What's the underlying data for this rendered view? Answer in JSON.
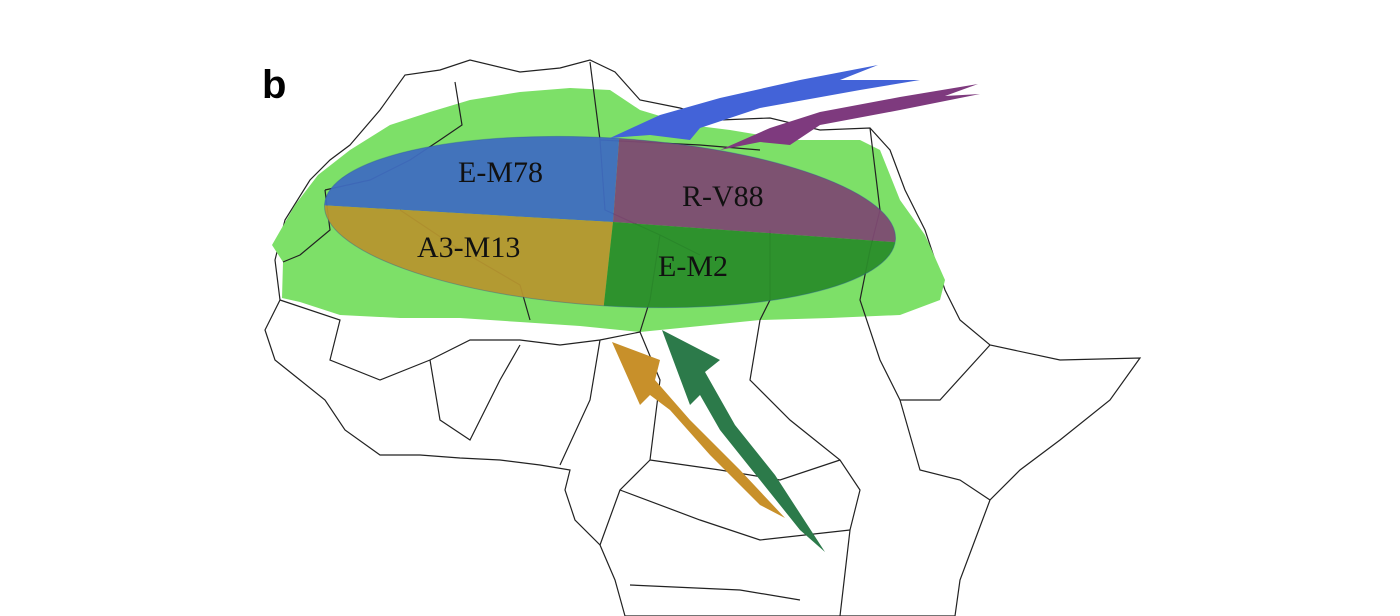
{
  "panel_label": "b",
  "regions": [
    {
      "label": "E-M78"
    },
    {
      "label": "R-V88"
    },
    {
      "label": "A3-M13"
    },
    {
      "label": "E-M2"
    }
  ]
}
